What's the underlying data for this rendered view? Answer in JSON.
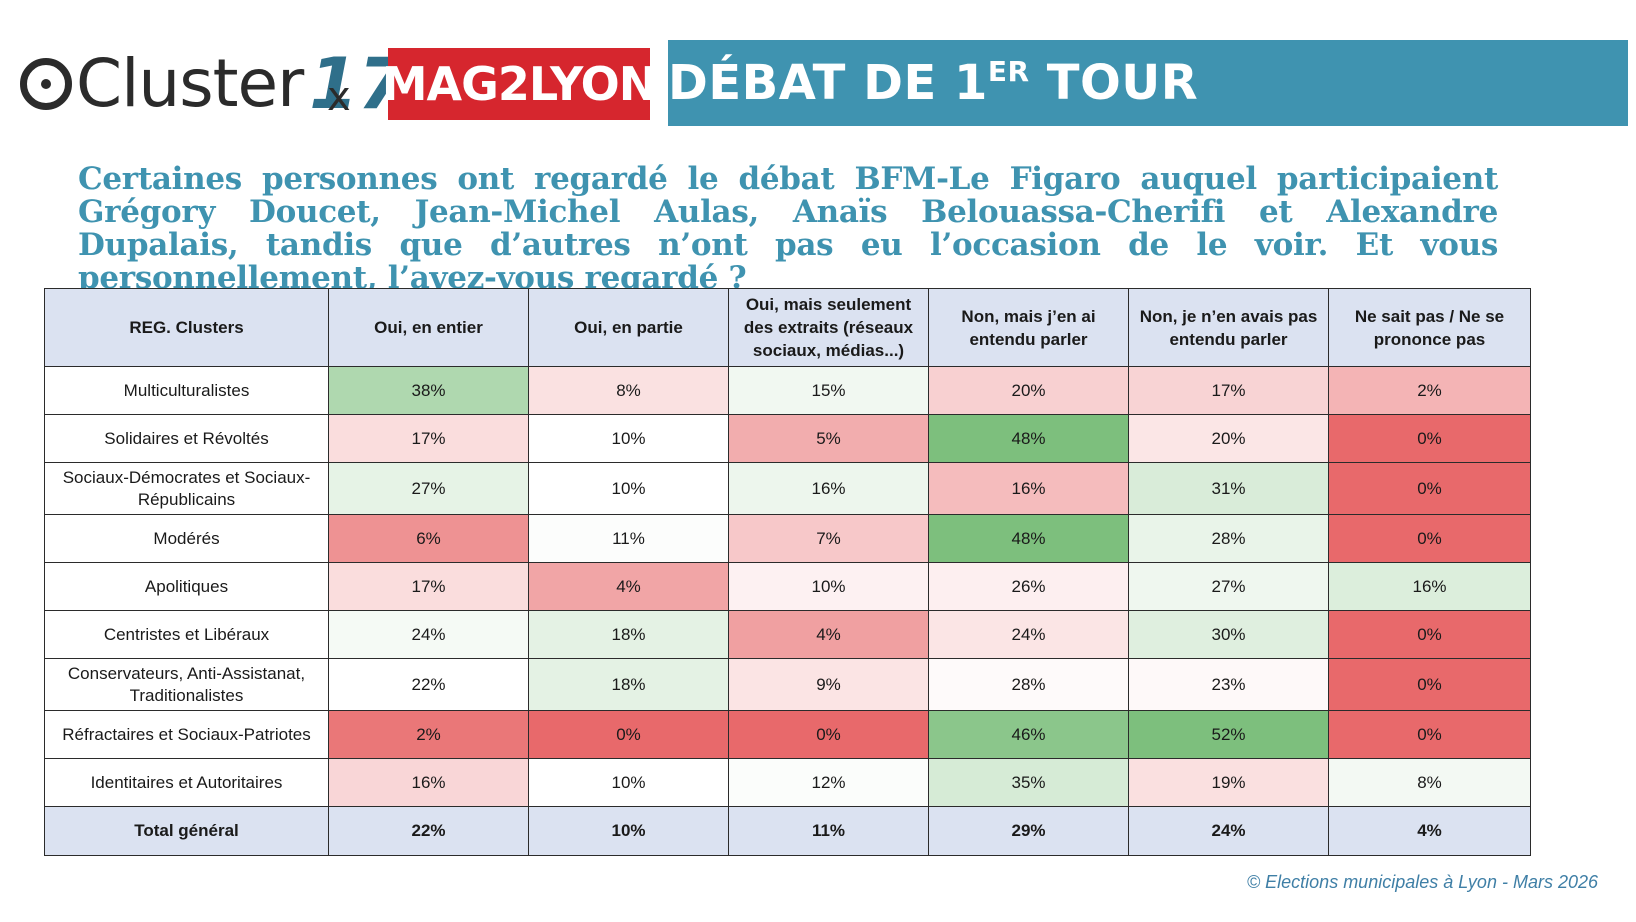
{
  "logos": {
    "cluster_text": "Cluster",
    "cluster_number": "17",
    "separator": "x",
    "partner": "MAG2LYON"
  },
  "banner": {
    "title": "DÉBAT DE 1ER TOUR",
    "title_main": "DÉBAT DE 1",
    "title_sup": "ER",
    "title_end": " TOUR"
  },
  "question": "Certaines personnes ont regardé le débat BFM-Le Figaro auquel participaient Grégory Doucet, Jean-Michel Aulas, Anaïs Belouassa-Cherifi et Alexandre Dupalais, tandis que d’autres n’ont pas eu l’occasion de le voir. Et vous personnellement, l’avez-vous regardé ?",
  "colors": {
    "banner": "#3f93b0",
    "header_bg": "#dbe2f1",
    "high": "#7dbf7d",
    "mid": "#ffffff",
    "low": "#e8696b",
    "partner_red": "#d6262e"
  },
  "chart_data": {
    "type": "table",
    "title": "Certaines personnes ont regardé le débat BFM-Le Figaro auquel participaient Grégory Doucet, Jean-Michel Aulas, Anaïs Belouassa-Cherifi et Alexandre Dupalais, tandis que d’autres n’ont pas eu l’occasion de le voir. Et vous personnellement, l’avez-vous regardé ?",
    "columns": [
      "REG. Clusters",
      "Oui, en entier",
      "Oui, en partie",
      "Oui, mais seulement des extraits (réseaux sociaux, médias...)",
      "Non, mais j’en ai entendu parler",
      "Non, je n’en avais pas entendu parler",
      "Ne sait pas / Ne se prononce pas"
    ],
    "rows": [
      {
        "label": "Multiculturalistes",
        "values": [
          "38%",
          "8%",
          "15%",
          "20%",
          "17%",
          "2%"
        ]
      },
      {
        "label": "Solidaires et Révoltés",
        "values": [
          "17%",
          "10%",
          "5%",
          "48%",
          "20%",
          "0%"
        ]
      },
      {
        "label": "Sociaux-Démocrates et Sociaux-Républicains",
        "values": [
          "27%",
          "10%",
          "16%",
          "16%",
          "31%",
          "0%"
        ]
      },
      {
        "label": "Modérés",
        "values": [
          "6%",
          "11%",
          "7%",
          "48%",
          "28%",
          "0%"
        ]
      },
      {
        "label": "Apolitiques",
        "values": [
          "17%",
          "4%",
          "10%",
          "26%",
          "27%",
          "16%"
        ]
      },
      {
        "label": "Centristes et Libéraux",
        "values": [
          "24%",
          "18%",
          "4%",
          "24%",
          "30%",
          "0%"
        ]
      },
      {
        "label": "Conservateurs, Anti-Assistanat, Traditionalistes",
        "values": [
          "22%",
          "18%",
          "9%",
          "28%",
          "23%",
          "0%"
        ]
      },
      {
        "label": "Réfractaires et Sociaux-Patriotes",
        "values": [
          "2%",
          "0%",
          "0%",
          "46%",
          "52%",
          "0%"
        ]
      },
      {
        "label": "Identitaires et Autoritaires",
        "values": [
          "16%",
          "10%",
          "12%",
          "35%",
          "19%",
          "8%"
        ]
      }
    ],
    "total": {
      "label": "Total général",
      "values": [
        "22%",
        "10%",
        "11%",
        "29%",
        "24%",
        "4%"
      ]
    }
  },
  "footer": "© Elections municipales à Lyon - Mars 2026"
}
